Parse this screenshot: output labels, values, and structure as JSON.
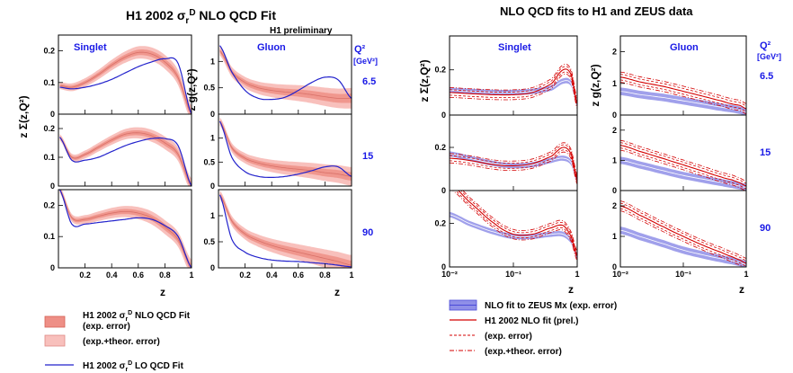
{
  "left_figure": {
    "title": "H1 2002 σ",
    "title_sub": "r",
    "title_sup": "D",
    "title_rest": " NLO QCD Fit",
    "preliminary": "H1 preliminary",
    "col_headers": [
      "Singlet",
      "Gluon"
    ],
    "ylabels": [
      "z Σ(z,Q²)",
      "z g(z,Q²)"
    ],
    "xlabel": "z",
    "q2_header_line1": "Q²",
    "q2_header_line2": "[GeV²]",
    "q2_values": [
      "6.5",
      "15",
      "90"
    ],
    "x_ticks": [
      "0.2",
      "0.4",
      "0.6",
      "0.8",
      "1"
    ],
    "singlet_y_ticks": [
      "0",
      "0.1",
      "0.2"
    ],
    "gluon_y_ticks": [
      "0",
      "0.5",
      "1"
    ],
    "legend": [
      {
        "label_main": "H1 2002 σ",
        "label_sub": "r",
        "label_sup": "D",
        "label_rest": " NLO QCD Fit",
        "label2": "(exp. error)",
        "swatch": "dark-band"
      },
      {
        "label_main": "(exp.+theor. error)",
        "swatch": "light-band"
      },
      {
        "label_main": "H1 2002 σ",
        "label_sub": "r",
        "label_sup": "D",
        "label_rest": " LO QCD Fit",
        "swatch": "blue-line"
      }
    ]
  },
  "right_figure": {
    "title": "NLO QCD fits to H1 and ZEUS data",
    "col_headers": [
      "Singlet",
      "Gluon"
    ],
    "ylabels": [
      "z Σ(z,Q²)",
      "z g(z,Q²)"
    ],
    "xlabel": "z",
    "q2_header_line1": "Q²",
    "q2_header_line2": "[GeV²]",
    "q2_values": [
      "6.5",
      "15",
      "90"
    ],
    "x_ticks": [
      "10⁻²",
      "10⁻¹",
      "1"
    ],
    "singlet_y_ticks": [
      "0",
      "0.2"
    ],
    "gluon_y_ticks": [
      "0",
      "1",
      "2"
    ],
    "legend": [
      {
        "label": "NLO fit to ZEUS Mx (exp. error)",
        "swatch": "blue-band"
      },
      {
        "label": "H1 2002 NLO fit (prel.)",
        "swatch": "red-solid"
      },
      {
        "label": "(exp. error)",
        "swatch": "red-dashed"
      },
      {
        "label": "(exp.+theor. error)",
        "swatch": "red-dashdot"
      }
    ]
  },
  "colors": {
    "band_light": "#f8c0bc",
    "band_dark": "#ee8f86",
    "curve_blue": "#2222cc",
    "label_blue": "#1a1ae6",
    "zeus_band": "#8f8fe8",
    "zeus_line": "#4a4ad8",
    "h1_red": "#d40000"
  },
  "chart_data": [
    {
      "type": "line",
      "title": "H1 2002 σrD NLO QCD Fit",
      "xlabel": "z",
      "xlim": [
        0,
        1
      ],
      "panels": {
        "singlet": {
          "ylim": [
            0,
            0.25
          ],
          "Q2_6.5": {
            "x": [
              0.01,
              0.1,
              0.2,
              0.3,
              0.4,
              0.5,
              0.6,
              0.7,
              0.8,
              0.9,
              1.0
            ],
            "nlo": [
              0.09,
              0.085,
              0.1,
              0.125,
              0.155,
              0.18,
              0.195,
              0.19,
              0.165,
              0.115,
              0.0
            ],
            "lo": [
              0.085,
              0.08,
              0.085,
              0.095,
              0.11,
              0.13,
              0.15,
              0.165,
              0.175,
              0.16,
              0.0
            ]
          },
          "Q2_15": {
            "x": [
              0.01,
              0.1,
              0.2,
              0.3,
              0.4,
              0.5,
              0.6,
              0.7,
              0.8,
              0.9,
              1.0
            ],
            "nlo": [
              0.17,
              0.1,
              0.11,
              0.135,
              0.16,
              0.18,
              0.185,
              0.175,
              0.15,
              0.11,
              0.0
            ],
            "lo": [
              0.17,
              0.09,
              0.09,
              0.1,
              0.12,
              0.14,
              0.155,
              0.165,
              0.165,
              0.14,
              0.0
            ]
          },
          "Q2_90": {
            "x": [
              0.01,
              0.1,
              0.2,
              0.3,
              0.4,
              0.5,
              0.6,
              0.7,
              0.8,
              0.9,
              1.0
            ],
            "nlo": [
              0.25,
              0.16,
              0.155,
              0.165,
              0.175,
              0.18,
              0.175,
              0.16,
              0.13,
              0.09,
              0.0
            ],
            "lo": [
              0.25,
              0.14,
              0.14,
              0.145,
              0.15,
              0.155,
              0.16,
              0.155,
              0.135,
              0.1,
              0.0
            ]
          }
        },
        "gluon": {
          "ylim": [
            0,
            1.5
          ],
          "Q2_6.5": {
            "x": [
              0.01,
              0.1,
              0.2,
              0.3,
              0.4,
              0.5,
              0.6,
              0.7,
              0.8,
              0.9,
              1.0
            ],
            "nlo": [
              1.2,
              0.8,
              0.6,
              0.5,
              0.45,
              0.42,
              0.4,
              0.37,
              0.33,
              0.3,
              0.3
            ],
            "lo": [
              1.3,
              0.8,
              0.45,
              0.3,
              0.28,
              0.32,
              0.45,
              0.6,
              0.7,
              0.65,
              0.3
            ]
          },
          "Q2_15": {
            "x": [
              0.01,
              0.1,
              0.2,
              0.3,
              0.4,
              0.5,
              0.6,
              0.7,
              0.8,
              0.9,
              1.0
            ],
            "nlo": [
              1.35,
              0.8,
              0.58,
              0.48,
              0.42,
              0.38,
              0.35,
              0.32,
              0.28,
              0.25,
              0.2
            ],
            "lo": [
              1.35,
              0.6,
              0.3,
              0.2,
              0.18,
              0.2,
              0.25,
              0.32,
              0.4,
              0.4,
              0.2
            ]
          },
          "Q2_90": {
            "x": [
              0.01,
              0.1,
              0.2,
              0.3,
              0.4,
              0.5,
              0.6,
              0.7,
              0.8,
              0.9,
              1.0
            ],
            "nlo": [
              1.4,
              0.9,
              0.65,
              0.52,
              0.43,
              0.36,
              0.3,
              0.24,
              0.18,
              0.12,
              0.05
            ],
            "lo": [
              1.4,
              0.55,
              0.3,
              0.2,
              0.15,
              0.13,
              0.12,
              0.1,
              0.08,
              0.05,
              0.02
            ]
          }
        }
      }
    },
    {
      "type": "line",
      "title": "NLO QCD fits to H1 and ZEUS data",
      "xlabel": "z",
      "xscale": "log",
      "xlim": [
        0.01,
        1
      ],
      "panels": {
        "singlet": {
          "ylim": [
            0,
            0.35
          ],
          "Q2_6.5": {
            "x": [
              0.01,
              0.02,
              0.05,
              0.1,
              0.2,
              0.4,
              0.6,
              0.8,
              1.0
            ],
            "zeus": [
              0.11,
              0.105,
              0.1,
              0.1,
              0.105,
              0.12,
              0.15,
              0.14,
              0.05
            ],
            "h1": [
              0.1,
              0.095,
              0.09,
              0.09,
              0.1,
              0.14,
              0.2,
              0.18,
              0.05
            ]
          },
          "Q2_15": {
            "x": [
              0.01,
              0.02,
              0.05,
              0.1,
              0.2,
              0.4,
              0.6,
              0.8,
              1.0
            ],
            "zeus": [
              0.17,
              0.15,
              0.125,
              0.115,
              0.12,
              0.14,
              0.15,
              0.13,
              0.05
            ],
            "h1": [
              0.15,
              0.14,
              0.12,
              0.115,
              0.125,
              0.16,
              0.2,
              0.17,
              0.05
            ]
          },
          "Q2_90": {
            "x": [
              0.01,
              0.02,
              0.05,
              0.1,
              0.2,
              0.4,
              0.6,
              0.8,
              1.0
            ],
            "zeus": [
              0.24,
              0.2,
              0.16,
              0.14,
              0.14,
              0.15,
              0.15,
              0.12,
              0.05
            ],
            "h1": [
              0.38,
              0.3,
              0.2,
              0.15,
              0.15,
              0.18,
              0.19,
              0.14,
              0.05
            ]
          }
        },
        "gluon": {
          "ylim": [
            0,
            2.5
          ],
          "Q2_6.5": {
            "x": [
              0.01,
              0.02,
              0.05,
              0.1,
              0.2,
              0.4,
              0.6,
              0.8,
              1.0
            ],
            "zeus": [
              0.75,
              0.65,
              0.55,
              0.45,
              0.35,
              0.25,
              0.2,
              0.15,
              0.1
            ],
            "h1": [
              1.2,
              1.05,
              0.9,
              0.75,
              0.6,
              0.45,
              0.35,
              0.3,
              0.2
            ]
          },
          "Q2_15": {
            "x": [
              0.01,
              0.02,
              0.05,
              0.1,
              0.2,
              0.4,
              0.6,
              0.8,
              1.0
            ],
            "zeus": [
              1.0,
              0.85,
              0.65,
              0.5,
              0.38,
              0.27,
              0.2,
              0.15,
              0.1
            ],
            "h1": [
              1.5,
              1.3,
              1.05,
              0.85,
              0.65,
              0.45,
              0.35,
              0.25,
              0.15
            ]
          },
          "Q2_90": {
            "x": [
              0.01,
              0.02,
              0.05,
              0.1,
              0.2,
              0.4,
              0.6,
              0.8,
              1.0
            ],
            "zeus": [
              1.2,
              1.0,
              0.75,
              0.55,
              0.4,
              0.27,
              0.2,
              0.14,
              0.08
            ],
            "h1": [
              2.0,
              1.7,
              1.3,
              1.0,
              0.72,
              0.48,
              0.33,
              0.22,
              0.12
            ]
          }
        }
      }
    }
  ]
}
